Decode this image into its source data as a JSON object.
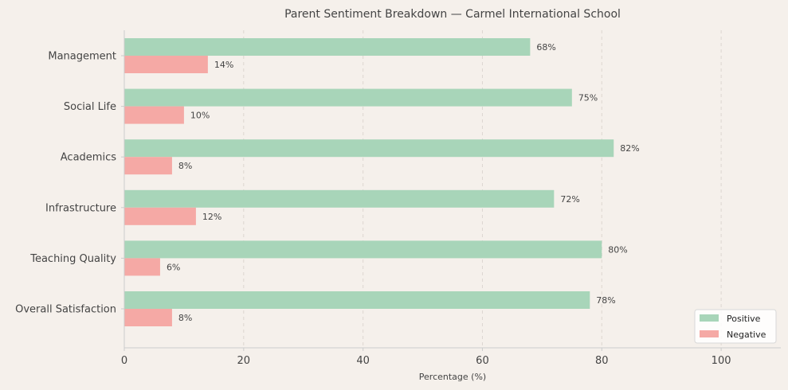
{
  "chart_data": {
    "type": "bar",
    "orientation": "horizontal",
    "title": "Parent Sentiment Breakdown — Carmel International School",
    "xlabel": "Percentage (%)",
    "ylabel": "",
    "categories": [
      "Management",
      "Social Life",
      "Academics",
      "Infrastructure",
      "Teaching Quality",
      "Overall Satisfaction"
    ],
    "series": [
      {
        "name": "Positive",
        "values": [
          68,
          75,
          82,
          72,
          80,
          78
        ],
        "color": "#a8d5b9"
      },
      {
        "name": "Negative",
        "values": [
          14,
          10,
          8,
          12,
          6,
          8
        ],
        "color": "#f5a9a5"
      }
    ],
    "label_suffix": "%",
    "xlim": [
      0,
      110
    ],
    "xticks": [
      0,
      20,
      40,
      60,
      80,
      100
    ],
    "grid": "vertical dashed",
    "legend": "bottom-right",
    "colors": {
      "background": "#f5f0eb",
      "text": "#444444",
      "grid": "#dcd6d0",
      "axis": "#cccccc"
    }
  }
}
